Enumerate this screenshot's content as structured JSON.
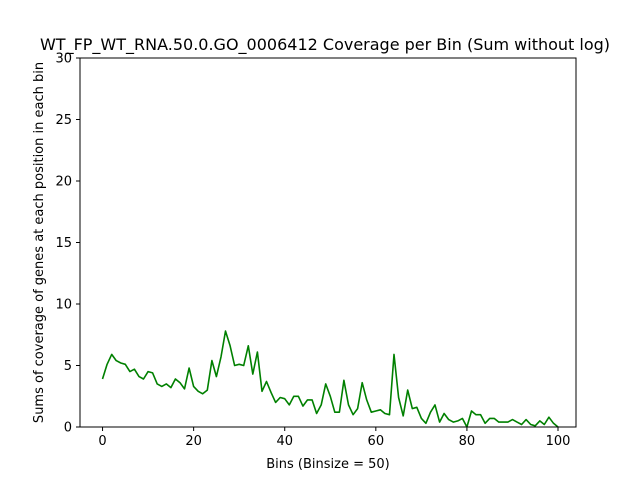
{
  "chart_data": {
    "type": "line",
    "title": "WT_FP_WT_RNA.50.0.GO_0006412 Coverage per Bin (Sum without log)",
    "xlabel": "Bins (Binsize = 50)",
    "ylabel": "Sums of coverage of genes at each position in each bin",
    "xlim": [
      -4.95,
      103.95
    ],
    "ylim": [
      0,
      30
    ],
    "xticks": [
      0,
      20,
      40,
      60,
      80,
      100
    ],
    "yticks": [
      0,
      5,
      10,
      15,
      20,
      25,
      30
    ],
    "line_color": "#008000",
    "grid": false,
    "series": [
      {
        "values": [
          3.9,
          5.1,
          5.9,
          5.4,
          5.2,
          5.1,
          4.5,
          4.7,
          4.1,
          3.9,
          4.5,
          4.4,
          3.5,
          3.3,
          3.5,
          3.2,
          3.9,
          3.6,
          3.1,
          4.8,
          3.3,
          2.9,
          2.7,
          3.0,
          5.4,
          4.1,
          5.7,
          7.8,
          6.6,
          5.0,
          5.1,
          5.0,
          6.6,
          4.3,
          6.1,
          2.9,
          3.7,
          2.8,
          2.0,
          2.4,
          2.3,
          1.8,
          2.5,
          2.5,
          1.7,
          2.2,
          2.2,
          1.1,
          1.8,
          3.5,
          2.5,
          1.2,
          1.2,
          3.8,
          1.8,
          1.0,
          1.5,
          3.6,
          2.2,
          1.2,
          1.3,
          1.4,
          1.1,
          1.0,
          5.9,
          2.4,
          0.9,
          3.0,
          1.5,
          1.6,
          0.7,
          0.3,
          1.2,
          1.8,
          0.4,
          1.1,
          0.6,
          0.4,
          0.5,
          0.7,
          0.0,
          1.3,
          1.0,
          1.0,
          0.3,
          0.7,
          0.7,
          0.4,
          0.4,
          0.4,
          0.6,
          0.4,
          0.2,
          0.6,
          0.2,
          0.1,
          0.5,
          0.2,
          0.8,
          0.3,
          0.0
        ]
      }
    ]
  }
}
